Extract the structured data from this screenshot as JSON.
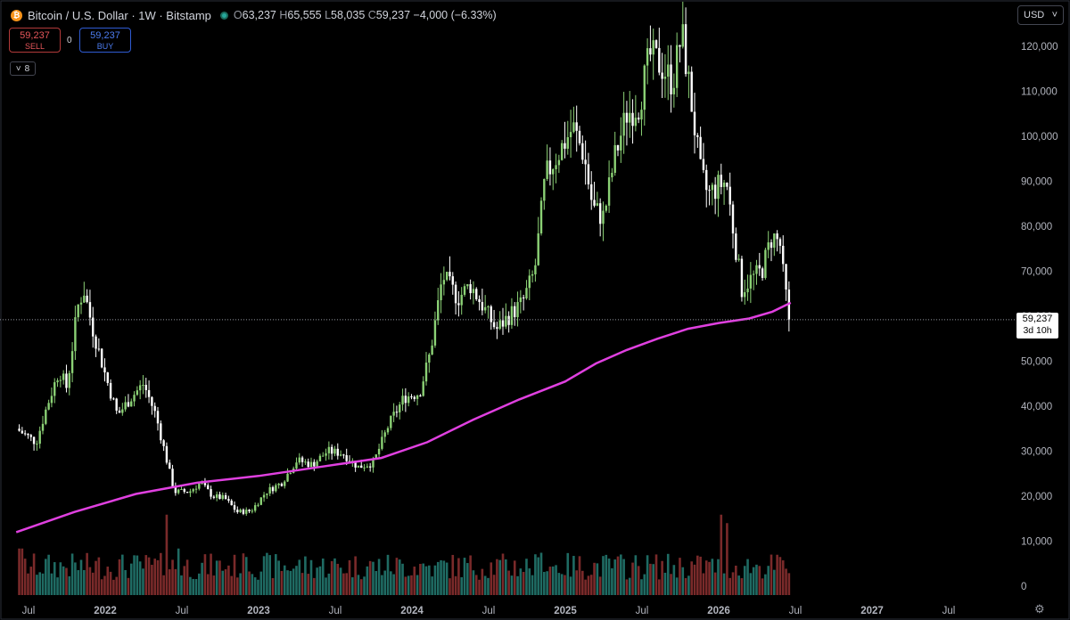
{
  "header": {
    "coin_symbol": "₿",
    "title": "Bitcoin / U.S. Dollar · 1W · Bitstamp",
    "open_label": "O",
    "open": "63,237",
    "high_label": "H",
    "high": "65,555",
    "low_label": "L",
    "low": "58,035",
    "close_label": "C",
    "close": "59,237",
    "change": "−4,000 (−6.33%)"
  },
  "trade": {
    "sell_price": "59,237",
    "sell_label": "SELL",
    "spread": "0",
    "buy_price": "59,237",
    "buy_label": "BUY"
  },
  "indicator_toggle": {
    "chevron": "˅",
    "count": "8"
  },
  "currency": {
    "label": "USD",
    "chevron": "˅"
  },
  "last_price": {
    "price": "59,237",
    "countdown": "3d 10h"
  },
  "colors": {
    "up": "#8bd175",
    "down": "#ffffff",
    "ma": "#e040e0",
    "vol_up": "#1f6b63",
    "vol_down": "#7a2a2a",
    "axis_text": "#b2b5be"
  },
  "icons": {
    "settings": "gear-icon"
  },
  "chart_data": {
    "type": "candlestick",
    "x_ticks": [
      "Jul",
      "2022",
      "Jul",
      "2023",
      "Jul",
      "2024",
      "Jul",
      "2025",
      "Jul",
      "2026",
      "Jul",
      "2027",
      "Jul"
    ],
    "y_ticks": [
      "120,000",
      "110,000",
      "100,000",
      "90,000",
      "80,000",
      "70,000",
      "60,000",
      "50,000",
      "40,000",
      "30,000",
      "20,000",
      "10,000",
      "0"
    ],
    "ylim": [
      0,
      127000
    ],
    "last_price": 59237,
    "price_path": [
      [
        2021.42,
        35000
      ],
      [
        2021.55,
        32000
      ],
      [
        2021.62,
        40000
      ],
      [
        2021.7,
        48000
      ],
      [
        2021.75,
        44000
      ],
      [
        2021.82,
        62000
      ],
      [
        2021.86,
        66000
      ],
      [
        2021.92,
        57000
      ],
      [
        2022.0,
        47000
      ],
      [
        2022.08,
        38000
      ],
      [
        2022.17,
        42000
      ],
      [
        2022.25,
        45000
      ],
      [
        2022.33,
        38000
      ],
      [
        2022.38,
        31000
      ],
      [
        2022.45,
        21000
      ],
      [
        2022.55,
        21000
      ],
      [
        2022.62,
        23000
      ],
      [
        2022.7,
        20000
      ],
      [
        2022.78,
        19500
      ],
      [
        2022.86,
        16500
      ],
      [
        2022.95,
        16700
      ],
      [
        2023.05,
        21000
      ],
      [
        2023.15,
        23000
      ],
      [
        2023.25,
        28000
      ],
      [
        2023.35,
        27000
      ],
      [
        2023.45,
        30000
      ],
      [
        2023.55,
        29500
      ],
      [
        2023.65,
        26500
      ],
      [
        2023.75,
        27500
      ],
      [
        2023.85,
        36000
      ],
      [
        2023.95,
        42000
      ],
      [
        2024.05,
        43000
      ],
      [
        2024.12,
        52000
      ],
      [
        2024.2,
        69000
      ],
      [
        2024.3,
        64000
      ],
      [
        2024.38,
        67000
      ],
      [
        2024.45,
        63000
      ],
      [
        2024.55,
        57000
      ],
      [
        2024.63,
        60000
      ],
      [
        2024.72,
        63000
      ],
      [
        2024.8,
        70000
      ],
      [
        2024.87,
        91000
      ],
      [
        2024.95,
        96000
      ],
      [
        2025.05,
        102000
      ],
      [
        2025.12,
        96000
      ],
      [
        2025.18,
        84000
      ],
      [
        2025.25,
        82000
      ],
      [
        2025.32,
        95000
      ],
      [
        2025.4,
        105000
      ],
      [
        2025.48,
        107000
      ],
      [
        2025.55,
        118000
      ],
      [
        2025.62,
        116000
      ],
      [
        2025.7,
        112000
      ],
      [
        2025.76,
        123000
      ],
      [
        2025.82,
        108000
      ],
      [
        2025.88,
        92000
      ],
      [
        2025.93,
        87000
      ],
      [
        2026.0,
        89000
      ],
      [
        2026.05,
        90000
      ],
      [
        2026.1,
        78000
      ],
      [
        2026.15,
        66000
      ],
      [
        2026.2,
        68000
      ],
      [
        2026.28,
        70000
      ],
      [
        2026.35,
        78000
      ],
      [
        2026.4,
        76000
      ],
      [
        2026.43,
        66000
      ],
      [
        2026.45,
        63000
      ],
      [
        2026.47,
        59237
      ]
    ],
    "moving_average": [
      [
        2021.42,
        12000
      ],
      [
        2021.8,
        16500
      ],
      [
        2022.2,
        20500
      ],
      [
        2022.6,
        23000
      ],
      [
        2023.0,
        24500
      ],
      [
        2023.4,
        26500
      ],
      [
        2023.8,
        28500
      ],
      [
        2024.1,
        32000
      ],
      [
        2024.4,
        37000
      ],
      [
        2024.7,
        41500
      ],
      [
        2025.0,
        45500
      ],
      [
        2025.2,
        49500
      ],
      [
        2025.4,
        52500
      ],
      [
        2025.6,
        55000
      ],
      [
        2025.8,
        57200
      ],
      [
        2026.0,
        58500
      ],
      [
        2026.2,
        59500
      ],
      [
        2026.35,
        61000
      ],
      [
        2026.47,
        63000
      ]
    ],
    "volume_spikes": [
      [
        2021.45,
        0.55
      ],
      [
        2022.4,
        0.95
      ],
      [
        2022.47,
        0.55
      ],
      [
        2022.92,
        0.45
      ],
      [
        2024.15,
        0.35
      ],
      [
        2024.85,
        0.5
      ],
      [
        2026.02,
        0.95
      ],
      [
        2026.06,
        0.85
      ],
      [
        2026.4,
        0.45
      ]
    ]
  }
}
